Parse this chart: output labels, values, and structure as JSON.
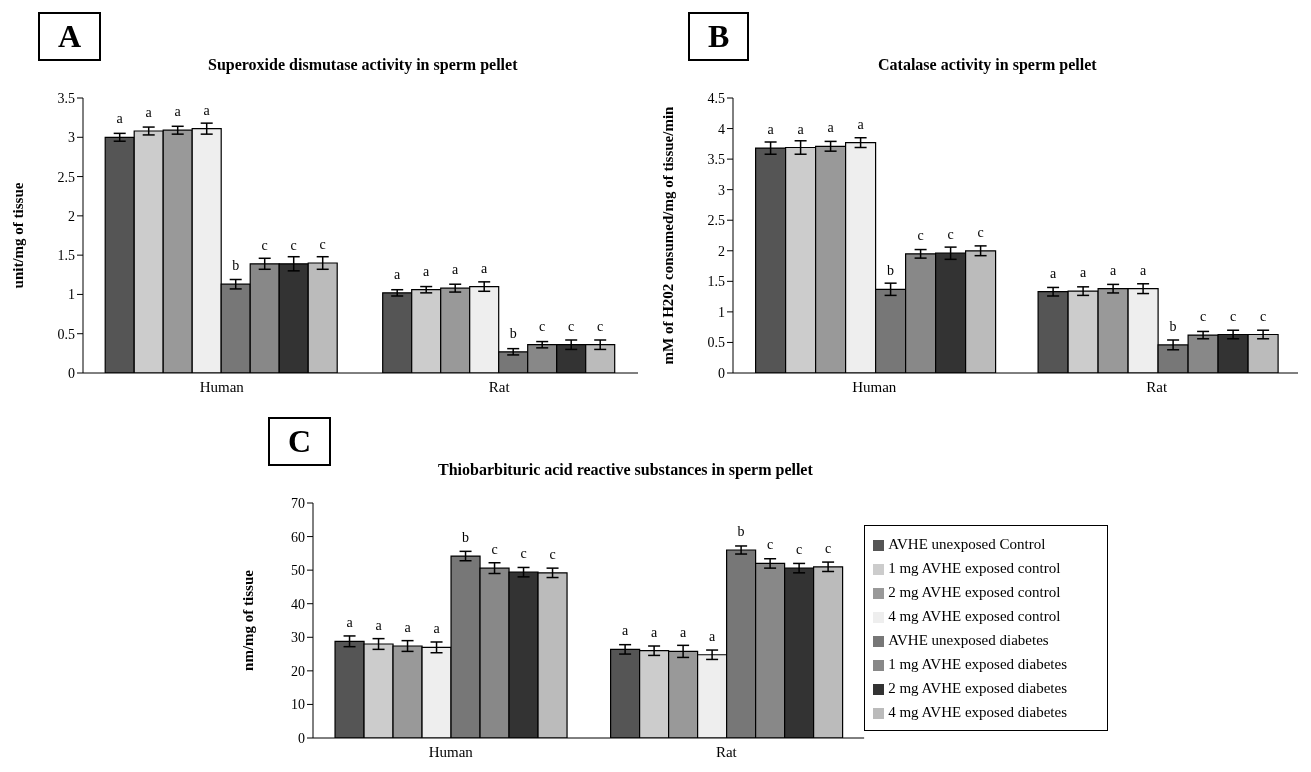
{
  "chart_data": [
    {
      "type": "bar",
      "title": "Superoxide dismutase activity in sperm pellet",
      "ylabel": "unit/mg of tissue",
      "annotations": [
        "A"
      ],
      "categories": [
        "Human",
        "Rat"
      ],
      "ylim": [
        0,
        3.5
      ],
      "yticks": [
        0,
        0.5,
        1,
        1.5,
        2,
        2.5,
        3,
        3.5
      ],
      "legend": false,
      "series": [
        {
          "color": "#555555",
          "values": [
            3.0,
            1.02
          ],
          "errors": [
            0.05,
            0.04
          ],
          "value_labels": [
            "a",
            "a"
          ]
        },
        {
          "color": "#cccccc",
          "values": [
            3.08,
            1.06
          ],
          "errors": [
            0.05,
            0.04
          ],
          "value_labels": [
            "a",
            "a"
          ]
        },
        {
          "color": "#999999",
          "values": [
            3.09,
            1.08
          ],
          "errors": [
            0.05,
            0.05
          ],
          "value_labels": [
            "a",
            "a"
          ]
        },
        {
          "color": "#eeeeee",
          "values": [
            3.11,
            1.1
          ],
          "errors": [
            0.07,
            0.06
          ],
          "value_labels": [
            "a",
            "a"
          ]
        },
        {
          "color": "#777777",
          "values": [
            1.13,
            0.27
          ],
          "errors": [
            0.06,
            0.04
          ],
          "value_labels": [
            "b",
            "b"
          ]
        },
        {
          "color": "#888888",
          "values": [
            1.39,
            0.36
          ],
          "errors": [
            0.07,
            0.04
          ],
          "value_labels": [
            "c",
            "c"
          ]
        },
        {
          "color": "#333333",
          "values": [
            1.39,
            0.36
          ],
          "errors": [
            0.09,
            0.06
          ],
          "value_labels": [
            "c",
            "c"
          ]
        },
        {
          "color": "#bbbbbb",
          "values": [
            1.4,
            0.36
          ],
          "errors": [
            0.08,
            0.06
          ],
          "value_labels": [
            "c",
            "c"
          ]
        }
      ]
    },
    {
      "type": "bar",
      "title": "Catalase activity in sperm pellet",
      "ylabel": "mM of H202 consumed/mg of tissue/min",
      "annotations": [
        "B"
      ],
      "categories": [
        "Human",
        "Rat"
      ],
      "ylim": [
        0,
        4.5
      ],
      "yticks": [
        0,
        0.5,
        1,
        1.5,
        2,
        2.5,
        3,
        3.5,
        4,
        4.5
      ],
      "legend": false,
      "series": [
        {
          "color": "#555555",
          "values": [
            3.68,
            1.33
          ],
          "errors": [
            0.1,
            0.07
          ],
          "value_labels": [
            "a",
            "a"
          ]
        },
        {
          "color": "#cccccc",
          "values": [
            3.69,
            1.34
          ],
          "errors": [
            0.11,
            0.07
          ],
          "value_labels": [
            "a",
            "a"
          ]
        },
        {
          "color": "#999999",
          "values": [
            3.71,
            1.38
          ],
          "errors": [
            0.08,
            0.07
          ],
          "value_labels": [
            "a",
            "a"
          ]
        },
        {
          "color": "#eeeeee",
          "values": [
            3.77,
            1.38
          ],
          "errors": [
            0.08,
            0.08
          ],
          "value_labels": [
            "a",
            "a"
          ]
        },
        {
          "color": "#777777",
          "values": [
            1.37,
            0.46
          ],
          "errors": [
            0.1,
            0.08
          ],
          "value_labels": [
            "b",
            "b"
          ]
        },
        {
          "color": "#888888",
          "values": [
            1.95,
            0.62
          ],
          "errors": [
            0.07,
            0.06
          ],
          "value_labels": [
            "c",
            "c"
          ]
        },
        {
          "color": "#333333",
          "values": [
            1.96,
            0.63
          ],
          "errors": [
            0.1,
            0.07
          ],
          "value_labels": [
            "c",
            "c"
          ]
        },
        {
          "color": "#bbbbbb",
          "values": [
            2.0,
            0.63
          ],
          "errors": [
            0.08,
            0.07
          ],
          "value_labels": [
            "c",
            "c"
          ]
        }
      ]
    },
    {
      "type": "bar",
      "title": "Thiobarbituric acid reactive substances in sperm pellet",
      "ylabel": "nm/mg of tissue",
      "annotations": [
        "C"
      ],
      "categories": [
        "Human",
        "Rat"
      ],
      "ylim": [
        0,
        70
      ],
      "yticks": [
        0,
        10,
        20,
        30,
        40,
        50,
        60,
        70
      ],
      "legend": "right",
      "series": [
        {
          "name": "AVHE unexposed Control",
          "color": "#555555",
          "values": [
            28.8,
            26.4
          ],
          "errors": [
            1.6,
            1.4
          ],
          "value_labels": [
            "a",
            "a"
          ]
        },
        {
          "name": "1 mg AVHE exposed control",
          "color": "#cccccc",
          "values": [
            28,
            26
          ],
          "errors": [
            1.6,
            1.4
          ],
          "value_labels": [
            "a",
            "a"
          ]
        },
        {
          "name": "2 mg AVHE exposed control",
          "color": "#999999",
          "values": [
            27.4,
            25.8
          ],
          "errors": [
            1.6,
            1.8
          ],
          "value_labels": [
            "a",
            "a"
          ]
        },
        {
          "name": "4 mg AVHE exposed control",
          "color": "#eeeeee",
          "values": [
            27,
            24.8
          ],
          "errors": [
            1.6,
            1.4
          ],
          "value_labels": [
            "a",
            "a"
          ]
        },
        {
          "name": "AVHE unexposed diabetes",
          "color": "#777777",
          "values": [
            54.2,
            56
          ],
          "errors": [
            1.4,
            1.2
          ],
          "value_labels": [
            "b",
            "b"
          ]
        },
        {
          "name": "1 mg AVHE exposed diabetes",
          "color": "#888888",
          "values": [
            50.6,
            52
          ],
          "errors": [
            1.6,
            1.4
          ],
          "value_labels": [
            "c",
            "c"
          ]
        },
        {
          "name": "2 mg AVHE exposed diabetes",
          "color": "#333333",
          "values": [
            49.4,
            50.6
          ],
          "errors": [
            1.4,
            1.4
          ],
          "value_labels": [
            "c",
            "c"
          ]
        },
        {
          "name": "4 mg AVHE exposed diabetes",
          "color": "#bbbbbb",
          "values": [
            49.2,
            51
          ],
          "errors": [
            1.4,
            1.4
          ],
          "value_labels": [
            "c",
            "c"
          ]
        }
      ]
    }
  ]
}
